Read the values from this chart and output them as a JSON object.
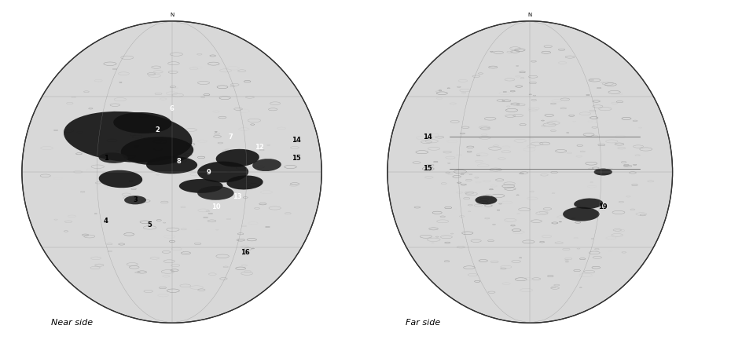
{
  "title": "",
  "near_side_label": "Near side",
  "far_side_label": "Far side",
  "bg_color": "#ffffff",
  "fig_width": 9.3,
  "fig_height": 4.47,
  "near_side_numbers": [
    "1",
    "2",
    "3",
    "4",
    "5",
    "6",
    "7",
    "8",
    "9",
    "10",
    "12",
    "13",
    "14",
    "15",
    "16"
  ],
  "far_side_numbers": [
    "14",
    "15",
    "19"
  ],
  "label_fontsize": 8,
  "number_fontsize": 6
}
